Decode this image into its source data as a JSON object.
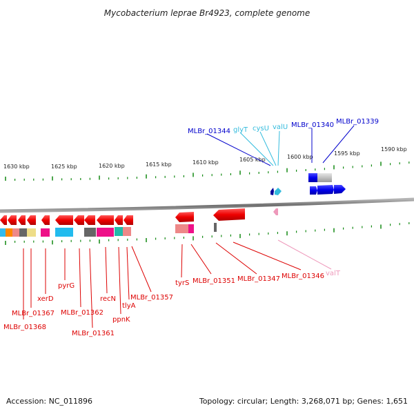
{
  "title": "Mycobacterium leprae Br4923, complete genome",
  "footer": {
    "accession": "Accession: NC_011896",
    "summary": "Topology: circular; Length: 3,268,071 bp; Genes: 1,651"
  },
  "colors": {
    "forward_gene": "#0000cc",
    "reverse_gene": "#dd0000",
    "trna_cyan": "#33bbdd",
    "trna_pink": "#ee99bb",
    "ticks": "#118811",
    "backbone": "#7a7a7a"
  },
  "scale_labels": [
    "1630 kbp",
    "1625 kbp",
    "1620 kbp",
    "1615 kbp",
    "1610 kbp",
    "1605 kbp",
    "1600 kbp",
    "1595 kbp",
    "1590 kbp"
  ],
  "top_labels": [
    {
      "text": "MLBr_01344",
      "color": "#0000cc"
    },
    {
      "text": "glyT",
      "color": "#33bbdd"
    },
    {
      "text": "cysU",
      "color": "#33bbdd"
    },
    {
      "text": "valU",
      "color": "#33bbdd"
    },
    {
      "text": "MLBr_01340",
      "color": "#0000cc"
    },
    {
      "text": "MLBr_01339",
      "color": "#0000cc"
    }
  ],
  "bottom_labels": [
    {
      "text": "MLBr_01368",
      "color": "#dd0000"
    },
    {
      "text": "MLBr_01367",
      "color": "#dd0000"
    },
    {
      "text": "xerD",
      "color": "#dd0000"
    },
    {
      "text": "pyrG",
      "color": "#dd0000"
    },
    {
      "text": "MLBr_01362",
      "color": "#dd0000"
    },
    {
      "text": "MLBr_01361",
      "color": "#dd0000"
    },
    {
      "text": "recN",
      "color": "#dd0000"
    },
    {
      "text": "ppnK",
      "color": "#dd0000"
    },
    {
      "text": "tlyA",
      "color": "#dd0000"
    },
    {
      "text": "MLBr_01357",
      "color": "#dd0000"
    },
    {
      "text": "tyrS",
      "color": "#dd0000"
    },
    {
      "text": "MLBr_01351",
      "color": "#dd0000"
    },
    {
      "text": "MLBr_01347",
      "color": "#dd0000"
    },
    {
      "text": "MLBr_01346",
      "color": "#dd0000"
    },
    {
      "text": "valT",
      "color": "#ee99bb"
    }
  ]
}
